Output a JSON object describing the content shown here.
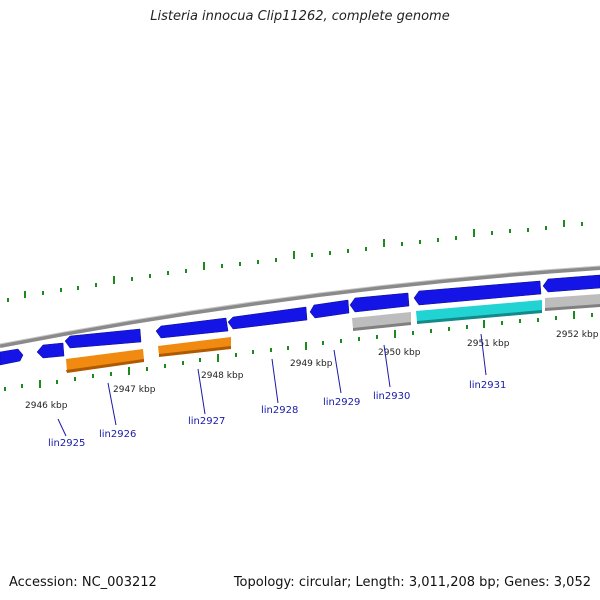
{
  "title": "Listeria innocua Clip11262, complete genome",
  "footer": {
    "accession_label": "Accession:",
    "accession_value": "NC_003212",
    "topology_label": "Topology:",
    "topology_value": "circular",
    "length_label": "Length:",
    "length_value": "3,011,208 bp",
    "genes_label": "Genes:",
    "genes_value": "3,052"
  },
  "colors": {
    "backbone": "#8a8a8a",
    "gene_forward": "#1414e6",
    "gene_reverse_orange": "#f08a10",
    "gene_reverse_grey": "#bdbdbd",
    "gene_reverse_cyan": "#22d3d3",
    "tick": "#1a8a1a",
    "label": "#1a1aa8"
  },
  "kbp_labels": [
    "2946 kbp",
    "2947 kbp",
    "2948 kbp",
    "2949 kbp",
    "2950 kbp",
    "2951 kbp",
    "2952 kbp"
  ],
  "gene_labels": [
    "lin2925",
    "lin2926",
    "lin2927",
    "lin2928",
    "lin2929",
    "lin2930",
    "lin2931"
  ]
}
